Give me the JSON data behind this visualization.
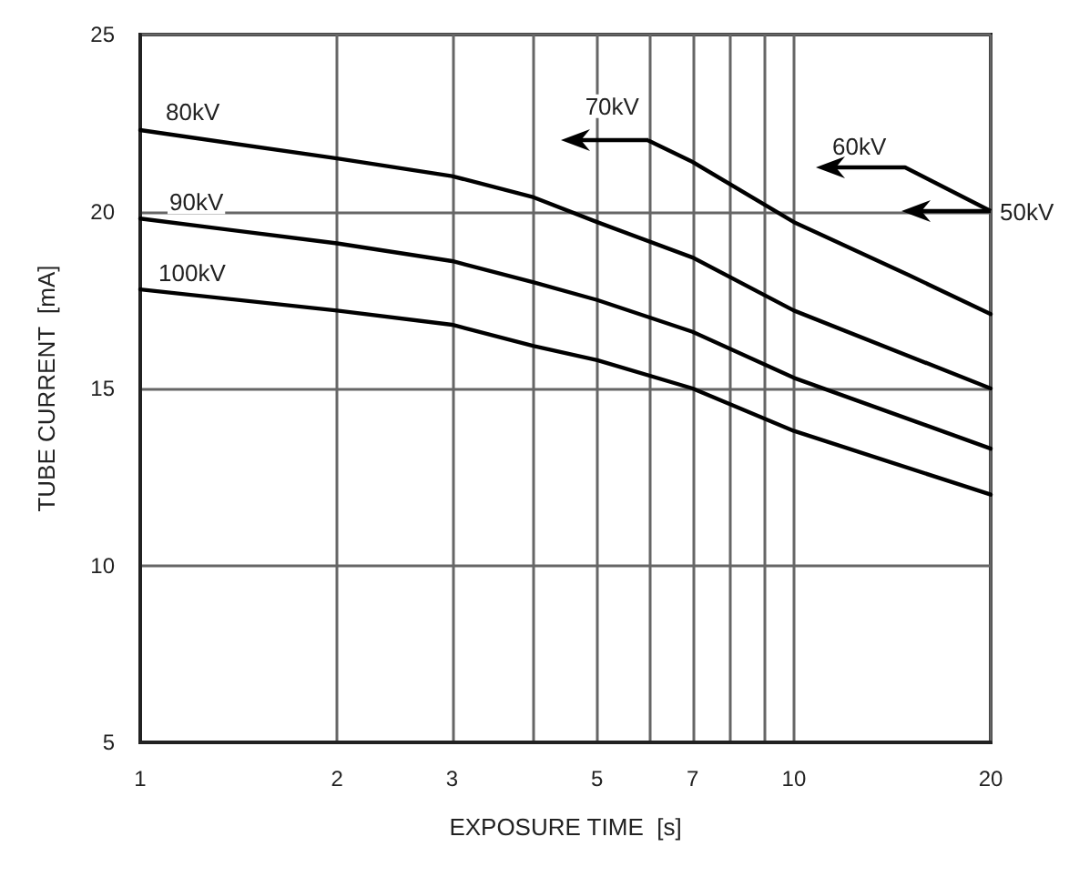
{
  "chart_data": {
    "type": "line",
    "xlabel": "EXPOSURE TIME  [s]",
    "ylabel": "TUBE CURRENT  [mA]",
    "log": "x",
    "grid": true,
    "marker": "none",
    "line_style": "solid",
    "legend": false,
    "xlim": [
      1,
      20
    ],
    "ylim": [
      5,
      25
    ],
    "xticks": [
      1,
      2,
      3,
      {
        "value": 4,
        "label": null
      },
      5,
      {
        "value": 6,
        "label": null
      },
      7,
      {
        "value": 8,
        "label": null
      },
      {
        "value": 9,
        "label": null
      },
      10,
      20
    ],
    "yticks": [
      5,
      10,
      15,
      20,
      25
    ],
    "series": [
      {
        "name": "80kV",
        "color": "#000000",
        "x": [
          1,
          2,
          3,
          4,
          5,
          7,
          10,
          20
        ],
        "values": [
          22.3,
          21.5,
          21.0,
          20.4,
          19.7,
          18.7,
          17.2,
          15.0
        ]
      },
      {
        "name": "90kV",
        "color": "#000000",
        "x": [
          1,
          2,
          3,
          4,
          5,
          7,
          10,
          20
        ],
        "values": [
          19.8,
          19.1,
          18.6,
          18.0,
          17.5,
          16.6,
          15.3,
          13.3
        ]
      },
      {
        "name": "100kV",
        "color": "#000000",
        "x": [
          1,
          2,
          3,
          4,
          5,
          7,
          10,
          20
        ],
        "values": [
          17.8,
          17.2,
          16.8,
          16.2,
          15.8,
          15.0,
          13.8,
          12.0
        ]
      },
      {
        "name": "70kV",
        "color": "#000000",
        "x": [
          6,
          7,
          10,
          15,
          20
        ],
        "values": [
          22.0,
          21.4,
          19.7,
          18.2,
          17.1
        ]
      }
    ],
    "annotations": [
      "60kV",
      "50kV"
    ]
  }
}
